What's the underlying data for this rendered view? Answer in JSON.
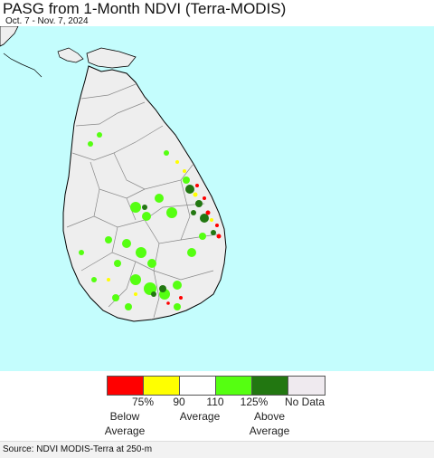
{
  "header": {
    "title": "PASG from 1-Month NDVI (Terra-MODIS)",
    "date_range": "Oct. 7 - Nov. 7, 2024"
  },
  "map": {
    "ocean_color": "#c4fdfd",
    "land_color": "#eeeeee",
    "district_line_color": "#888888",
    "coast_color": "#000000"
  },
  "legend": {
    "swatches": [
      {
        "color": "#ff0000"
      },
      {
        "color": "#ffff00"
      },
      {
        "color": "#ffffff"
      },
      {
        "color": "#55ff11"
      },
      {
        "color": "#227711"
      },
      {
        "color": "#efeaef"
      }
    ],
    "ticks": [
      "75%",
      "90",
      "110",
      "125%",
      "No Data"
    ],
    "categories": {
      "below": "Below\nAverage",
      "average": "Average",
      "above": "Above\nAverage"
    }
  },
  "footer": {
    "source": "Source: NDVI MODIS-Terra at 250-m"
  }
}
